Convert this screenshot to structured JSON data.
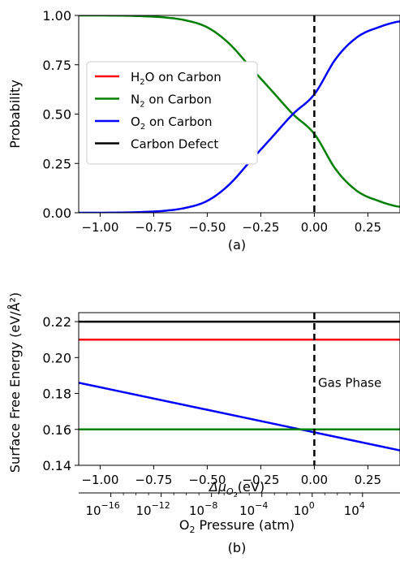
{
  "chart_data": [
    {
      "type": "line",
      "panel_label": "(a)",
      "ylabel": "Probability",
      "xlim": [
        -1.1,
        0.4
      ],
      "ylim": [
        0.0,
        1.0
      ],
      "xticks": [
        -1.0,
        -0.75,
        -0.5,
        -0.25,
        0.0,
        0.25
      ],
      "xtick_labels": [
        "−1.00",
        "−0.75",
        "−0.50",
        "−0.25",
        "0.00",
        "0.25"
      ],
      "yticks": [
        0.0,
        0.25,
        0.5,
        0.75,
        1.0
      ],
      "ytick_labels": [
        "0.00",
        "0.25",
        "0.50",
        "0.75",
        "1.00"
      ],
      "grid": false,
      "legend_position": "center-left",
      "vline": {
        "x": 0.0,
        "style": "dashed",
        "color": "#000000"
      },
      "x": [
        -1.1,
        -1.0,
        -0.9,
        -0.8,
        -0.7,
        -0.6,
        -0.5,
        -0.4,
        -0.3,
        -0.2,
        -0.1,
        0.0,
        0.1,
        0.2,
        0.3,
        0.4
      ],
      "series": [
        {
          "name": "H₂O on Carbon",
          "legend_main": "H",
          "legend_sub": "2",
          "legend_rest": "O on Carbon",
          "color": "#ff0000",
          "values": [
            0,
            0,
            0,
            0,
            0,
            0,
            0,
            0,
            0,
            0,
            0,
            0,
            0,
            0,
            0,
            0
          ],
          "visible": false
        },
        {
          "name": "N₂ on Carbon",
          "legend_main": "N",
          "legend_sub": "2",
          "legend_rest": " on Carbon",
          "color": "#008000",
          "values": [
            1.0,
            1.0,
            0.999,
            0.996,
            0.99,
            0.975,
            0.94,
            0.86,
            0.74,
            0.62,
            0.5,
            0.4,
            0.22,
            0.11,
            0.06,
            0.03
          ]
        },
        {
          "name": "O₂ on Carbon",
          "legend_main": "O",
          "legend_sub": "2",
          "legend_rest": " on Carbon",
          "color": "#0000ff",
          "values": [
            0.0,
            0.0,
            0.001,
            0.004,
            0.01,
            0.025,
            0.06,
            0.14,
            0.26,
            0.38,
            0.5,
            0.6,
            0.78,
            0.89,
            0.94,
            0.97
          ]
        },
        {
          "name": "Carbon Defect",
          "legend_main": "Carbon Defect",
          "legend_sub": "",
          "legend_rest": "",
          "color": "#000000",
          "values": [
            0,
            0,
            0,
            0,
            0,
            0,
            0,
            0,
            0,
            0,
            0,
            0,
            0,
            0,
            0,
            0
          ],
          "visible": false
        }
      ]
    },
    {
      "type": "line",
      "panel_label": "(b)",
      "ylabel": "Surface Free Energy (eV/Å²)",
      "xlabel_main": "Δμ",
      "xlabel_sub": "O",
      "xlabel_subsub": "2",
      "xlabel_rest": "(eV)",
      "xlim": [
        -1.1,
        0.4
      ],
      "ylim": [
        0.14,
        0.225
      ],
      "xticks": [
        -1.0,
        -0.75,
        -0.5,
        -0.25,
        0.0,
        0.25
      ],
      "xtick_labels": [
        "−1.00",
        "−0.75",
        "−0.50",
        "−0.25",
        "0.00",
        "0.25"
      ],
      "yticks": [
        0.14,
        0.16,
        0.18,
        0.2,
        0.22
      ],
      "ytick_labels": [
        "0.14",
        "0.16",
        "0.18",
        "0.20",
        "0.22"
      ],
      "grid": false,
      "vline": {
        "x": 0.0,
        "style": "dashed",
        "color": "#000000"
      },
      "annotation": {
        "text": "Gas Phase",
        "x": 0.01,
        "y": 0.186
      },
      "x": [
        -1.1,
        0.4
      ],
      "series": [
        {
          "name": "Carbon Defect",
          "color": "#000000",
          "values": [
            0.22,
            0.22
          ]
        },
        {
          "name": "H₂O on Carbon",
          "color": "#ff0000",
          "values": [
            0.21,
            0.21
          ]
        },
        {
          "name": "O₂ on Carbon",
          "color": "#0000ff",
          "values": [
            0.186,
            0.1483
          ]
        },
        {
          "name": "N₂ on Carbon",
          "color": "#008000",
          "values": [
            0.16,
            0.16
          ]
        }
      ],
      "secondary_xaxis": {
        "label_main": "O",
        "label_sub": "2",
        "label_rest": " Pressure (atm)",
        "scale": "log",
        "tick_exponents": [
          -16,
          -12,
          -8,
          -4,
          0,
          4
        ],
        "tick_base": "10",
        "tick_labels": [
          "−16",
          "−12",
          "−8",
          "−4",
          "0",
          "4"
        ],
        "tick_x_values": [
          -0.95,
          -0.715,
          -0.48,
          -0.245,
          -0.01,
          0.225
        ]
      }
    }
  ]
}
